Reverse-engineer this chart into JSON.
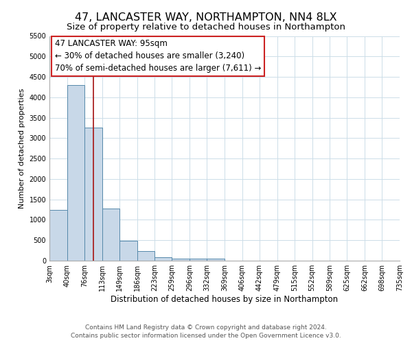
{
  "title": "47, LANCASTER WAY, NORTHAMPTON, NN4 8LX",
  "subtitle": "Size of property relative to detached houses in Northampton",
  "xlabel": "Distribution of detached houses by size in Northampton",
  "ylabel": "Number of detached properties",
  "bar_edges": [
    3,
    40,
    76,
    113,
    149,
    186,
    223,
    259,
    296,
    332,
    369,
    406,
    442,
    479,
    515,
    552,
    589,
    625,
    662,
    698,
    735
  ],
  "bar_heights": [
    1250,
    4300,
    3250,
    1280,
    480,
    230,
    90,
    55,
    45,
    55,
    0,
    0,
    0,
    0,
    0,
    0,
    0,
    0,
    0,
    0
  ],
  "bar_color": "#c8d8e8",
  "bar_edgecolor": "#5588aa",
  "vline_x": 95,
  "vline_color": "#aa2222",
  "annotation_text_line1": "47 LANCASTER WAY: 95sqm",
  "annotation_text_line2": "← 30% of detached houses are smaller (3,240)",
  "annotation_text_line3": "70% of semi-detached houses are larger (7,611) →",
  "ylim": [
    0,
    5500
  ],
  "yticks": [
    0,
    500,
    1000,
    1500,
    2000,
    2500,
    3000,
    3500,
    4000,
    4500,
    5000,
    5500
  ],
  "tick_labels": [
    "3sqm",
    "40sqm",
    "76sqm",
    "113sqm",
    "149sqm",
    "186sqm",
    "223sqm",
    "259sqm",
    "296sqm",
    "332sqm",
    "369sqm",
    "406sqm",
    "442sqm",
    "479sqm",
    "515sqm",
    "552sqm",
    "589sqm",
    "625sqm",
    "662sqm",
    "698sqm",
    "735sqm"
  ],
  "footer_line1": "Contains HM Land Registry data © Crown copyright and database right 2024.",
  "footer_line2": "Contains public sector information licensed under the Open Government Licence v3.0.",
  "bg_color": "#ffffff",
  "grid_color": "#ccdde8",
  "title_fontsize": 11.5,
  "subtitle_fontsize": 9.5,
  "xlabel_fontsize": 8.5,
  "ylabel_fontsize": 8,
  "tick_fontsize": 7,
  "annotation_fontsize": 8.5,
  "footer_fontsize": 6.5
}
